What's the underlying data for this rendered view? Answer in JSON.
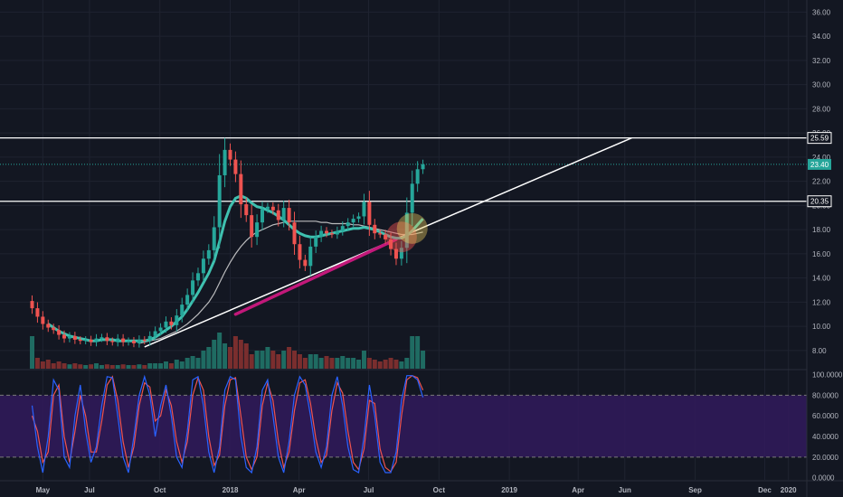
{
  "chart_data": [
    {
      "type": "candlestick",
      "panel": "price",
      "ylim": [
        6.5,
        37
      ],
      "y_ticks": [
        "36.00",
        "34.00",
        "32.00",
        "30.00",
        "28.00",
        "26.00",
        "24.00",
        "22.00",
        "20.00",
        "18.00",
        "16.00",
        "14.00",
        "12.00",
        "10.00",
        "8.00"
      ],
      "grid": true,
      "colors": {
        "background": "#131722",
        "grid": "#1f2330",
        "up": "#26a69a",
        "down": "#ef5350",
        "ma_fast": "#3fc1b0",
        "ma_slow": "#d8d8d8",
        "trendline": "#ffffff",
        "highlight_segment": "#c2187a",
        "volume_up": "#1f6b62",
        "volume_down": "#7a2e2e"
      },
      "x": [
        "2017-04-17",
        "2017-04-24",
        "2017-05-01",
        "2017-05-08",
        "2017-05-15",
        "2017-05-22",
        "2017-05-29",
        "2017-06-05",
        "2017-06-12",
        "2017-06-19",
        "2017-06-26",
        "2017-07-03",
        "2017-07-10",
        "2017-07-17",
        "2017-07-24",
        "2017-07-31",
        "2017-08-07",
        "2017-08-14",
        "2017-08-21",
        "2017-08-28",
        "2017-09-04",
        "2017-09-11",
        "2017-09-18",
        "2017-09-25",
        "2017-10-02",
        "2017-10-09",
        "2017-10-16",
        "2017-10-23",
        "2017-10-30",
        "2017-11-06",
        "2017-11-13",
        "2017-11-20",
        "2017-11-27",
        "2017-12-04",
        "2017-12-11",
        "2017-12-18",
        "2017-12-25",
        "2018-01-01",
        "2018-01-08",
        "2018-01-15",
        "2018-01-22",
        "2018-01-29",
        "2018-02-05",
        "2018-02-12",
        "2018-02-19",
        "2018-02-26",
        "2018-03-05",
        "2018-03-12",
        "2018-03-19",
        "2018-03-26",
        "2018-04-02",
        "2018-04-09",
        "2018-04-16",
        "2018-04-23",
        "2018-04-30",
        "2018-05-07",
        "2018-05-14",
        "2018-05-21",
        "2018-05-28",
        "2018-06-04",
        "2018-06-11",
        "2018-06-18",
        "2018-06-25",
        "2018-07-02",
        "2018-07-09",
        "2018-07-16",
        "2018-07-23",
        "2018-07-30",
        "2018-08-06",
        "2018-08-13",
        "2018-08-20",
        "2018-08-27",
        "2018-09-03",
        "2018-09-10"
      ],
      "close": [
        11.5,
        10.8,
        10.2,
        9.9,
        9.7,
        9.3,
        9.0,
        9.2,
        8.9,
        8.8,
        8.9,
        8.7,
        9.0,
        9.1,
        8.8,
        8.7,
        9.0,
        8.7,
        8.8,
        8.6,
        8.9,
        8.8,
        9.2,
        9.6,
        9.9,
        10.4,
        10.1,
        10.9,
        11.8,
        12.6,
        13.8,
        14.4,
        15.6,
        16.3,
        18.2,
        22.5,
        24.6,
        23.8,
        22.6,
        20.1,
        19.2,
        17.4,
        18.6,
        19.7,
        19.9,
        19.6,
        18.8,
        19.8,
        18.6,
        16.8,
        15.5,
        15.0,
        16.6,
        17.4,
        17.9,
        17.7,
        17.6,
        17.9,
        18.3,
        18.6,
        18.9,
        19.1,
        20.3,
        18.4,
        17.7,
        17.6,
        17.2,
        16.4,
        15.6,
        16.5,
        19.4,
        21.8,
        23.0,
        23.4
      ],
      "ma_fast": [
        null,
        null,
        null,
        10.2,
        9.9,
        9.6,
        9.4,
        9.2,
        9.1,
        9.0,
        8.9,
        8.8,
        8.8,
        8.9,
        8.9,
        8.9,
        8.8,
        8.8,
        8.8,
        8.8,
        8.8,
        8.8,
        8.9,
        9.1,
        9.4,
        9.7,
        10.0,
        10.4,
        10.8,
        11.4,
        12.1,
        12.8,
        13.6,
        14.4,
        15.4,
        17.0,
        18.7,
        19.9,
        20.6,
        20.8,
        20.6,
        20.2,
        19.9,
        19.8,
        19.6,
        19.4,
        19.1,
        18.8,
        18.4,
        18.0,
        17.7,
        17.5,
        17.4,
        17.4,
        17.5,
        17.6,
        17.7,
        17.8,
        17.9,
        18.0,
        18.1,
        18.1,
        18.2,
        18.1,
        18.0,
        17.8,
        17.6,
        17.4,
        17.3,
        17.3,
        17.5,
        17.9,
        18.4,
        18.9
      ],
      "ma_slow": [
        null,
        null,
        null,
        null,
        null,
        null,
        null,
        null,
        null,
        null,
        null,
        null,
        null,
        null,
        null,
        null,
        null,
        null,
        null,
        null,
        8.6,
        8.7,
        8.8,
        8.9,
        9.0,
        9.2,
        9.4,
        9.6,
        9.9,
        10.2,
        10.6,
        11.0,
        11.5,
        12.0,
        12.7,
        13.6,
        14.5,
        15.3,
        16.0,
        16.6,
        17.1,
        17.5,
        17.8,
        18.0,
        18.2,
        18.4,
        18.5,
        18.6,
        18.7,
        18.7,
        18.7,
        18.7,
        18.7,
        18.7,
        18.6,
        18.6,
        18.5,
        18.5,
        18.5,
        18.5,
        18.4,
        18.4,
        18.3,
        18.2,
        18.1,
        18.0,
        17.9,
        17.8,
        17.7,
        17.6,
        17.6,
        17.6,
        17.7,
        17.8
      ],
      "volume": [
        0.9,
        0.3,
        0.2,
        0.25,
        0.15,
        0.2,
        0.15,
        0.12,
        0.15,
        0.12,
        0.1,
        0.12,
        0.15,
        0.1,
        0.12,
        0.1,
        0.1,
        0.12,
        0.1,
        0.1,
        0.12,
        0.1,
        0.15,
        0.15,
        0.15,
        0.2,
        0.15,
        0.25,
        0.2,
        0.3,
        0.35,
        0.3,
        0.5,
        0.6,
        0.8,
        1.0,
        0.7,
        0.6,
        0.9,
        0.8,
        0.7,
        0.4,
        0.5,
        0.5,
        0.6,
        0.5,
        0.4,
        0.5,
        0.6,
        0.5,
        0.4,
        0.3,
        0.4,
        0.4,
        0.3,
        0.35,
        0.3,
        0.3,
        0.35,
        0.3,
        0.3,
        0.25,
        0.5,
        0.3,
        0.25,
        0.2,
        0.25,
        0.3,
        0.25,
        0.2,
        0.3,
        0.9,
        0.9,
        0.5
      ],
      "price_lines": [
        {
          "label": "25.59",
          "value": 25.59,
          "color": "#ffffff"
        },
        {
          "label": "20.35",
          "value": 20.35,
          "color": "#ffffff"
        },
        {
          "label": "23.40",
          "value": 23.4,
          "color": "#26a69a",
          "dotted": true
        }
      ],
      "trendline": {
        "start": [
          "2017-09-11",
          8.3
        ],
        "end": [
          "2019-06-10",
          25.59
        ]
      },
      "highlight_segment": {
        "start": [
          "2018-01-08",
          11.0
        ],
        "end": [
          "2018-08-06",
          17.2
        ]
      },
      "markers": [
        {
          "at": [
            "2018-08-13",
            17.4
          ],
          "color": "#ef5350"
        },
        {
          "at": [
            "2018-08-27",
            18.1
          ],
          "color": "#f0d060"
        }
      ]
    },
    {
      "type": "line",
      "panel": "oscillator",
      "ylim": [
        -2,
        104
      ],
      "y_ticks": [
        "100.0000",
        "80.0000",
        "60.0000",
        "40.0000",
        "20.0000",
        "0.0000"
      ],
      "band": [
        20,
        80
      ],
      "colors": {
        "band_fill": "#311a5c",
        "band_edge": "#7a7a7a",
        "k_line": "#2962ff",
        "d_line": "#ef5350"
      },
      "k": [
        70,
        30,
        5,
        40,
        95,
        85,
        20,
        10,
        60,
        90,
        45,
        15,
        30,
        70,
        98,
        97,
        60,
        20,
        5,
        40,
        80,
        98,
        80,
        40,
        70,
        90,
        60,
        20,
        10,
        45,
        95,
        98,
        70,
        25,
        5,
        30,
        85,
        98,
        95,
        40,
        10,
        5,
        30,
        85,
        95,
        60,
        20,
        5,
        35,
        80,
        98,
        90,
        60,
        25,
        10,
        30,
        80,
        98,
        70,
        30,
        8,
        5,
        40,
        90,
        60,
        15,
        5,
        5,
        25,
        75,
        99,
        99,
        95,
        78
      ],
      "d": [
        60,
        45,
        15,
        25,
        80,
        90,
        40,
        15,
        45,
        80,
        60,
        25,
        25,
        55,
        90,
        98,
        75,
        35,
        10,
        30,
        70,
        92,
        88,
        55,
        60,
        85,
        70,
        35,
        15,
        35,
        80,
        97,
        85,
        40,
        12,
        22,
        70,
        95,
        97,
        60,
        20,
        8,
        20,
        70,
        92,
        75,
        35,
        10,
        25,
        65,
        92,
        95,
        72,
        38,
        15,
        22,
        65,
        92,
        82,
        45,
        15,
        8,
        28,
        75,
        72,
        28,
        10,
        6,
        15,
        60,
        95,
        99,
        97,
        85
      ]
    }
  ],
  "time_axis": [
    "May",
    "Jul",
    "Oct",
    "2018",
    "Apr",
    "Jul",
    "Oct",
    "2019",
    "Apr",
    "Jun",
    "Sep",
    "Dec",
    "2020"
  ]
}
